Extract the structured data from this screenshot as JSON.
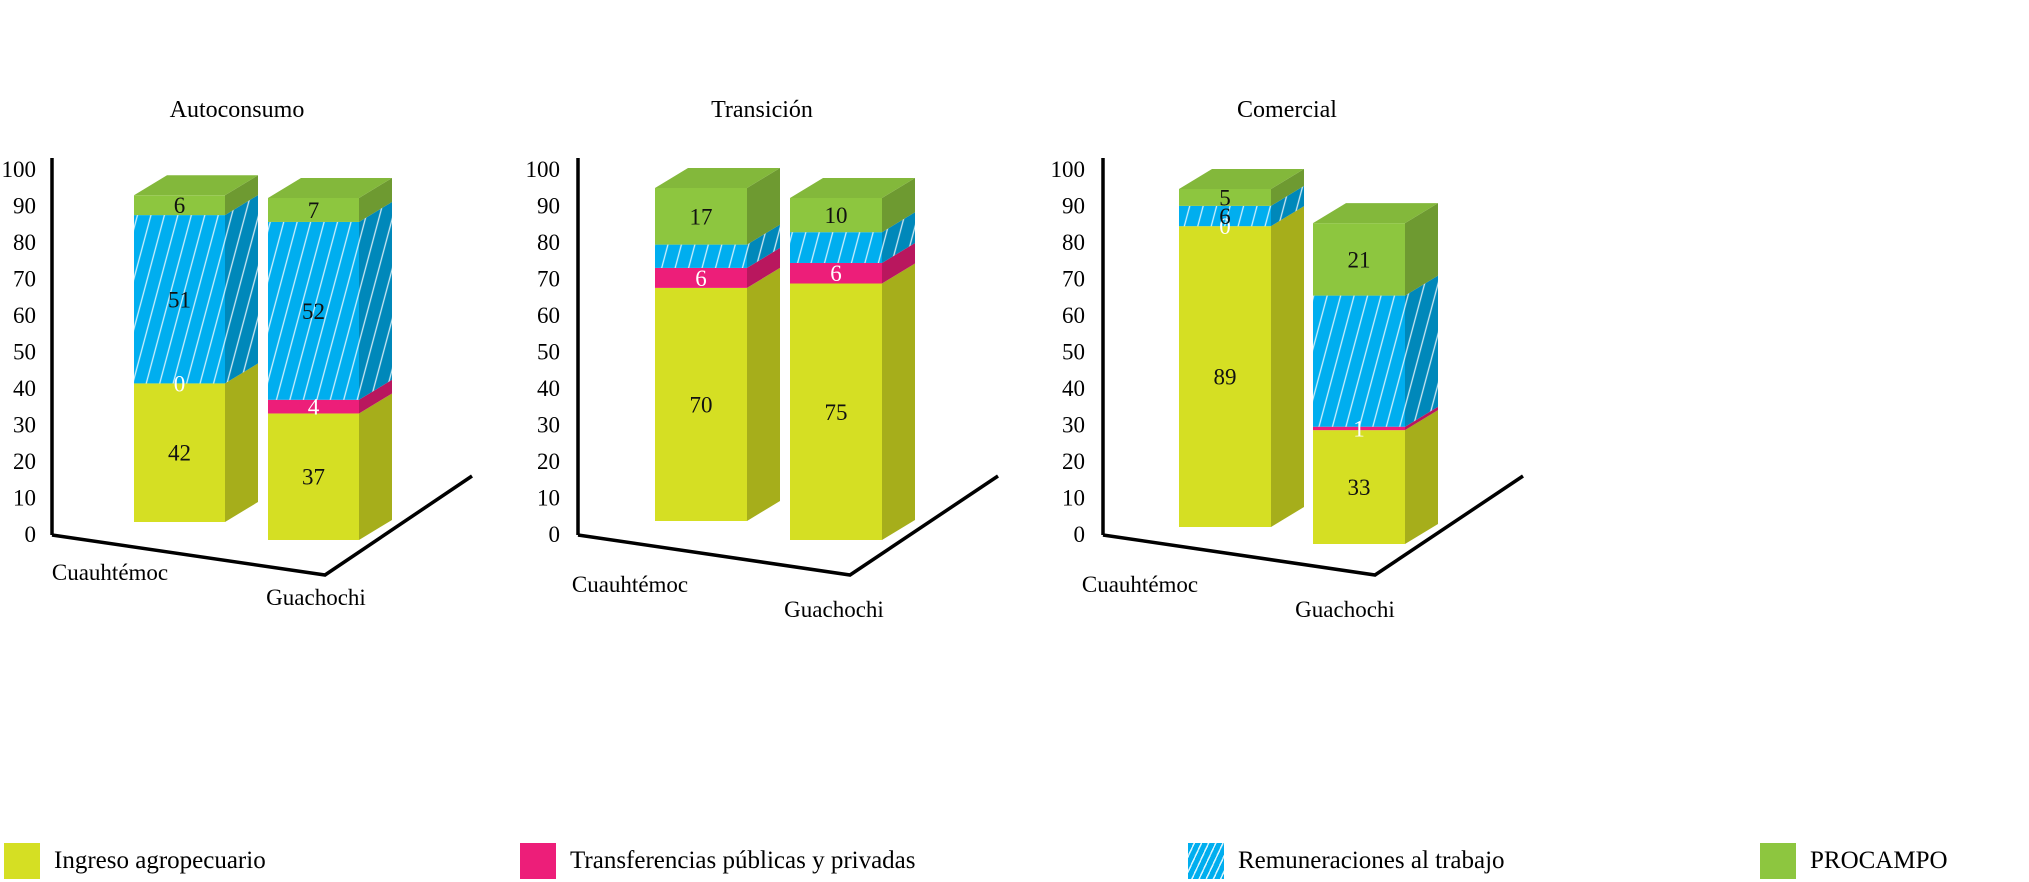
{
  "chart_data": {
    "type": "bar",
    "stacked": true,
    "three_d": true,
    "y_ticks": [
      "0",
      "10",
      "20",
      "30",
      "40",
      "50",
      "60",
      "70",
      "80",
      "90",
      "100"
    ],
    "ylim": [
      0,
      100
    ],
    "categories": [
      "Cuauhtémoc",
      "Guachochi"
    ],
    "series_meta": [
      {
        "name": "Ingreso agropecuario",
        "color": "#d5df23",
        "hatch": false
      },
      {
        "name": "Transferencias públicas y privadas",
        "color": "#ed1e79",
        "hatch": false
      },
      {
        "name": "Remuneraciones al trabajo",
        "color": "#00aeef",
        "hatch": true
      },
      {
        "name": "PROCAMPO",
        "color": "#8dc63f",
        "hatch": false
      }
    ],
    "panels": [
      {
        "title": "Autoconsumo",
        "bars": [
          {
            "category": "Cuauhtémoc",
            "values": [
              42,
              0,
              51,
              6
            ],
            "labels": [
              "42",
              "0",
              "51",
              "6"
            ]
          },
          {
            "category": "Guachochi",
            "values": [
              37,
              4,
              52,
              7
            ],
            "labels": [
              "37",
              "4",
              "52",
              "7"
            ]
          }
        ]
      },
      {
        "title": "Transición",
        "bars": [
          {
            "category": "Cuauhtémoc",
            "values": [
              70,
              6,
              7,
              17
            ],
            "labels": [
              "70",
              "6",
              "",
              "17"
            ]
          },
          {
            "category": "Guachochi",
            "values": [
              75,
              6,
              9,
              10
            ],
            "labels": [
              "75",
              "6",
              "",
              "10"
            ]
          }
        ]
      },
      {
        "title": "Comercial",
        "bars": [
          {
            "category": "Cuauhtémoc",
            "values": [
              89,
              0,
              6,
              5
            ],
            "labels": [
              "89",
              "0",
              "6",
              "5"
            ]
          },
          {
            "category": "Guachochi",
            "values": [
              33,
              1,
              38,
              21
            ],
            "labels": [
              "33",
              "1",
              "",
              "21"
            ]
          }
        ]
      }
    ]
  },
  "legend": {
    "items": [
      {
        "label": "Ingreso agropecuario",
        "color": "#d5df23"
      },
      {
        "label": "Transferencias públicas y privadas",
        "color": "#ed1e79"
      },
      {
        "label": "Remuneraciones al trabajo",
        "color": "#00aeef"
      },
      {
        "label": "PROCAMPO",
        "color": "#8dc63f"
      }
    ]
  }
}
